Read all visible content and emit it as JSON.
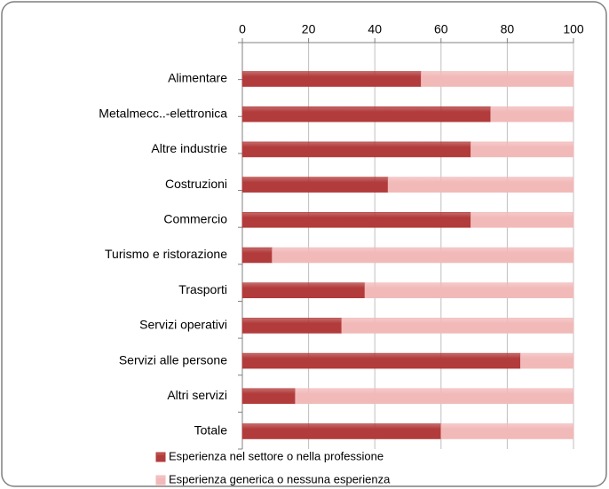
{
  "chart_data": {
    "type": "stacked_barh",
    "categories": [
      "Alimentare",
      "Metalmecc..-elettronica",
      "Altre industrie",
      "Costruzioni",
      "Commercio",
      "Turismo e ristorazione",
      "Trasporti",
      "Servizi operativi",
      "Servizi alle persone",
      "Altri servizi",
      "Totale"
    ],
    "series": [
      {
        "name": "Esperienza nel settore o nella professione",
        "color": "#b23b3b",
        "values": [
          54,
          75,
          69,
          44,
          69,
          9,
          37,
          30,
          84,
          16,
          60
        ]
      },
      {
        "name": "Esperienza generica o nessuna esperienza",
        "color": "#f2b9b9",
        "values": [
          46,
          25,
          31,
          56,
          31,
          91,
          63,
          70,
          16,
          84,
          40
        ]
      }
    ],
    "xlim": [
      0,
      100
    ],
    "xticks": [
      0,
      20,
      40,
      60,
      80,
      100
    ],
    "grid": true,
    "legend": "bottom"
  }
}
